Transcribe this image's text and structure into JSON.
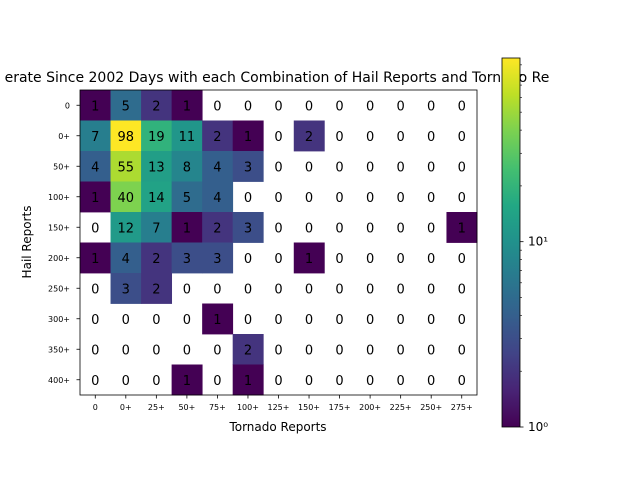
{
  "chart_data": {
    "type": "heatmap",
    "title": "erate Since 2002 Days with each Combination of Hail Reports and Tornado Re",
    "xlabel": "Tornado Reports",
    "ylabel": "Hail Reports",
    "x_categories": [
      "0",
      "0+",
      "25+",
      "50+",
      "75+",
      "100+",
      "125+",
      "150+",
      "175+",
      "200+",
      "225+",
      "250+",
      "275+"
    ],
    "y_categories": [
      "0",
      "0+",
      "50+",
      "100+",
      "150+",
      "200+",
      "250+",
      "300+",
      "350+",
      "400+"
    ],
    "values": [
      [
        1,
        5,
        2,
        1,
        0,
        0,
        0,
        0,
        0,
        0,
        0,
        0,
        0
      ],
      [
        7,
        98,
        19,
        11,
        2,
        1,
        0,
        2,
        0,
        0,
        0,
        0,
        0
      ],
      [
        4,
        55,
        13,
        8,
        4,
        3,
        0,
        0,
        0,
        0,
        0,
        0,
        0
      ],
      [
        1,
        40,
        14,
        5,
        4,
        0,
        0,
        0,
        0,
        0,
        0,
        0,
        0
      ],
      [
        0,
        12,
        7,
        1,
        2,
        3,
        0,
        0,
        0,
        0,
        0,
        0,
        1
      ],
      [
        1,
        4,
        2,
        3,
        3,
        0,
        0,
        1,
        0,
        0,
        0,
        0,
        0
      ],
      [
        0,
        3,
        2,
        0,
        0,
        0,
        0,
        0,
        0,
        0,
        0,
        0,
        0
      ],
      [
        0,
        0,
        0,
        0,
        1,
        0,
        0,
        0,
        0,
        0,
        0,
        0,
        0
      ],
      [
        0,
        0,
        0,
        0,
        0,
        2,
        0,
        0,
        0,
        0,
        0,
        0,
        0
      ],
      [
        0,
        0,
        0,
        1,
        0,
        1,
        0,
        0,
        0,
        0,
        0,
        0,
        0
      ]
    ],
    "color_scale": "log",
    "colormap": "viridis",
    "vmin": 1,
    "vmax": 98,
    "colorbar_ticks": [
      "10⁰",
      "10¹"
    ],
    "zero_cells": "unfilled",
    "grid": false
  }
}
